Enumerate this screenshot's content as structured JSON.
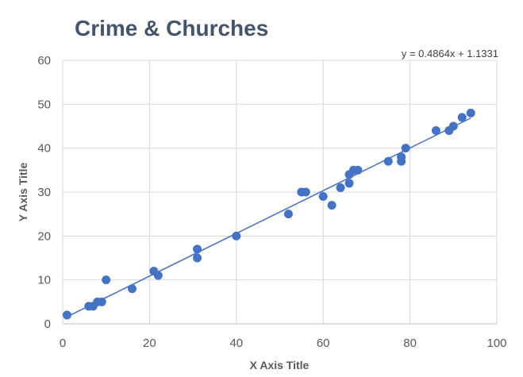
{
  "chart_data": {
    "type": "scatter",
    "title": "Crime & Churches",
    "xlabel": "X Axis Title",
    "ylabel": "Y Axis Title",
    "xlim": [
      0,
      100
    ],
    "ylim": [
      0,
      60
    ],
    "x_ticks": [
      "0",
      "20",
      "40",
      "60",
      "80",
      "100"
    ],
    "y_ticks": [
      "0",
      "10",
      "20",
      "30",
      "40",
      "50",
      "60"
    ],
    "grid": true,
    "series": [
      {
        "color": "#4472c4",
        "points": [
          {
            "x": 1,
            "y": 2
          },
          {
            "x": 6,
            "y": 4
          },
          {
            "x": 7,
            "y": 4
          },
          {
            "x": 8,
            "y": 5
          },
          {
            "x": 9,
            "y": 5
          },
          {
            "x": 10,
            "y": 10
          },
          {
            "x": 16,
            "y": 8
          },
          {
            "x": 21,
            "y": 12
          },
          {
            "x": 22,
            "y": 11
          },
          {
            "x": 31,
            "y": 17
          },
          {
            "x": 31,
            "y": 15
          },
          {
            "x": 40,
            "y": 20
          },
          {
            "x": 52,
            "y": 25
          },
          {
            "x": 55,
            "y": 30
          },
          {
            "x": 56,
            "y": 30
          },
          {
            "x": 60,
            "y": 29
          },
          {
            "x": 62,
            "y": 27
          },
          {
            "x": 64,
            "y": 31
          },
          {
            "x": 66,
            "y": 34
          },
          {
            "x": 66,
            "y": 32
          },
          {
            "x": 67,
            "y": 35
          },
          {
            "x": 68,
            "y": 35
          },
          {
            "x": 75,
            "y": 37
          },
          {
            "x": 78,
            "y": 38
          },
          {
            "x": 78,
            "y": 37
          },
          {
            "x": 79,
            "y": 40
          },
          {
            "x": 86,
            "y": 44
          },
          {
            "x": 89,
            "y": 44
          },
          {
            "x": 90,
            "y": 45
          },
          {
            "x": 92,
            "y": 47
          },
          {
            "x": 94,
            "y": 48
          }
        ]
      }
    ],
    "trendline": {
      "type": "linear",
      "slope": 0.4864,
      "intercept": 1.1331,
      "x_range": [
        1,
        94
      ],
      "color": "#4472c4",
      "label": "y = 0.4864x + 1.1331"
    }
  }
}
